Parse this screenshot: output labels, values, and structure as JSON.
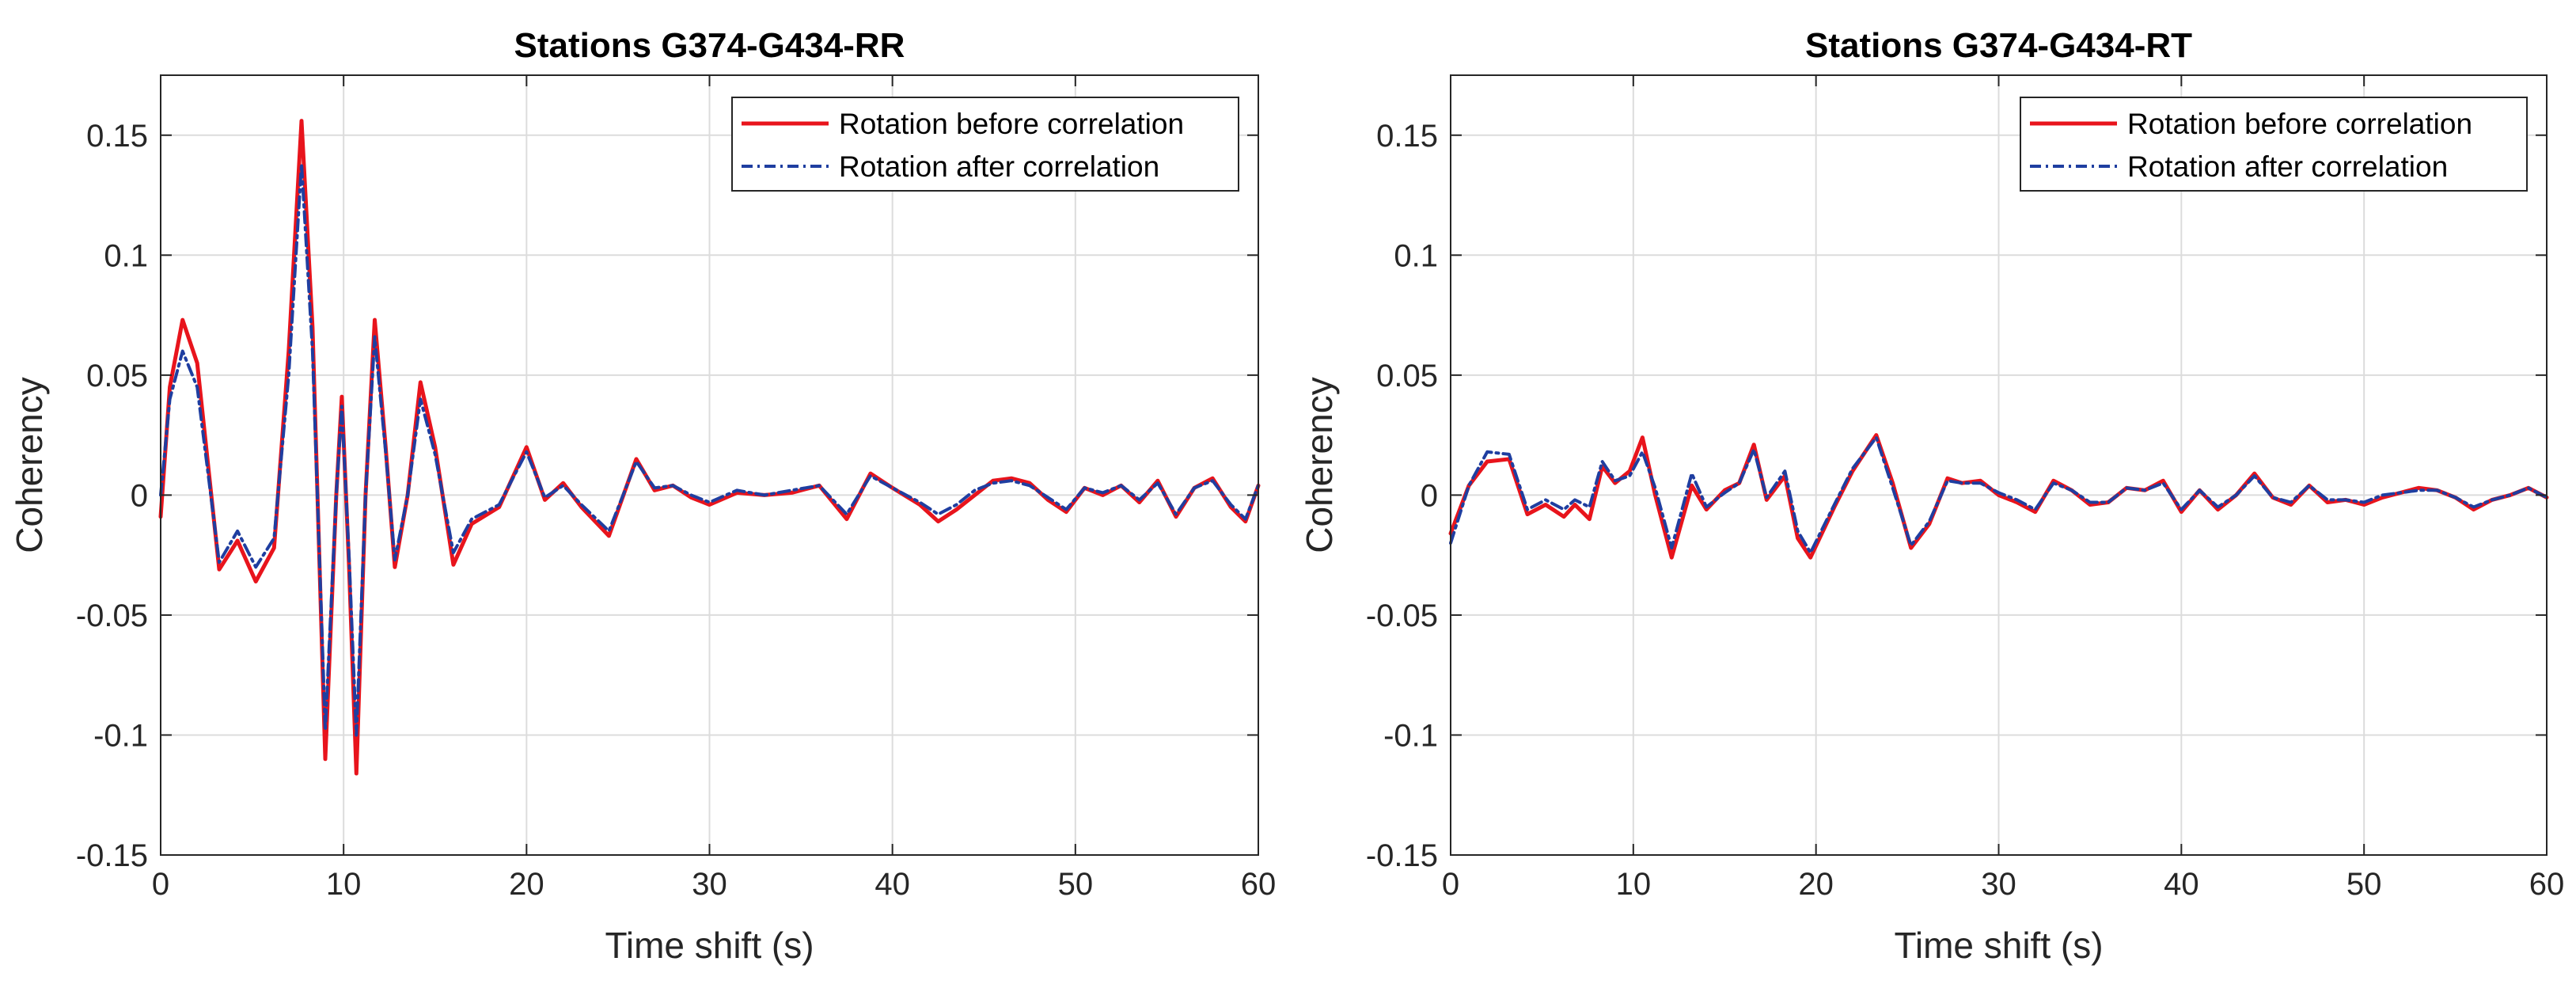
{
  "colors": {
    "before": "#e8141c",
    "after": "#1f3ea0",
    "grid": "#dcdcdc",
    "axis": "#262626"
  },
  "chart_data": [
    {
      "type": "line",
      "title": "Stations G374-G434-RR",
      "xlabel": "Time shift (s)",
      "ylabel": "Coherency",
      "xlim": [
        0,
        60
      ],
      "ylim": [
        -0.15,
        0.175
      ],
      "grid": true,
      "legend_position": "top-right",
      "xticks": [
        0,
        10,
        20,
        30,
        40,
        50,
        60
      ],
      "xtick_labels": [
        "0",
        "10",
        "20",
        "30",
        "40",
        "50",
        "60"
      ],
      "yticks": [
        -0.15,
        -0.1,
        -0.05,
        0,
        0.05,
        0.1,
        0.15
      ],
      "ytick_labels": [
        "-0.15",
        "-0.1",
        "-0.05",
        "0",
        "0.05",
        "0.1",
        "0.15"
      ],
      "series": [
        {
          "name": "Rotation before correlation",
          "style": "solid",
          "color_key": "before",
          "x": [
            0,
            0.5,
            1.2,
            2,
            3.2,
            4.2,
            5.2,
            6.2,
            7.0,
            7.7,
            8.3,
            9.0,
            9.6,
            9.9,
            10.3,
            10.7,
            11.2,
            11.7,
            12.3,
            12.8,
            13.5,
            14.2,
            15.0,
            16.0,
            17.0,
            18.5,
            20.0,
            21.0,
            22.0,
            23.0,
            24.5,
            26.0,
            27.0,
            28.0,
            29.0,
            30.0,
            31.5,
            33.0,
            34.5,
            36.0,
            37.5,
            38.8,
            40.0,
            41.5,
            42.5,
            43.5,
            44.5,
            45.5,
            46.5,
            47.5,
            48.5,
            49.5,
            50.5,
            51.5,
            52.5,
            53.5,
            54.5,
            55.5,
            56.5,
            57.5,
            58.5,
            59.3,
            60
          ],
          "y": [
            -0.009,
            0.045,
            0.073,
            0.055,
            -0.031,
            -0.019,
            -0.036,
            -0.022,
            0.06,
            0.156,
            0.07,
            -0.11,
            0.0,
            0.041,
            -0.03,
            -0.116,
            0.0,
            0.073,
            0.02,
            -0.03,
            0.0,
            0.047,
            0.02,
            -0.029,
            -0.012,
            -0.005,
            0.02,
            -0.002,
            0.005,
            -0.005,
            -0.017,
            0.015,
            0.002,
            0.004,
            -0.001,
            -0.004,
            0.001,
            0.0,
            0.001,
            0.004,
            -0.01,
            0.009,
            0.003,
            -0.004,
            -0.011,
            -0.006,
            0.0,
            0.006,
            0.007,
            0.005,
            -0.002,
            -0.007,
            0.003,
            0.0,
            0.004,
            -0.003,
            0.006,
            -0.009,
            0.003,
            0.007,
            -0.005,
            -0.011,
            0.004
          ]
        },
        {
          "name": "Rotation after correlation",
          "style": "dashdot",
          "color_key": "after",
          "x": [
            0,
            0.5,
            1.2,
            2,
            3.2,
            4.2,
            5.2,
            6.2,
            7.0,
            7.7,
            8.3,
            9.0,
            9.6,
            9.9,
            10.3,
            10.7,
            11.2,
            11.7,
            12.3,
            12.8,
            13.5,
            14.2,
            15.0,
            16.0,
            17.0,
            18.5,
            20.0,
            21.0,
            22.0,
            23.0,
            24.5,
            26.0,
            27.0,
            28.0,
            29.0,
            30.0,
            31.5,
            33.0,
            34.5,
            36.0,
            37.5,
            38.8,
            40.0,
            41.5,
            42.5,
            43.5,
            44.5,
            45.5,
            46.5,
            47.5,
            48.5,
            49.5,
            50.5,
            51.5,
            52.5,
            53.5,
            54.5,
            55.5,
            56.5,
            57.5,
            58.5,
            59.3,
            60
          ],
          "y": [
            0.0,
            0.04,
            0.06,
            0.045,
            -0.028,
            -0.015,
            -0.03,
            -0.018,
            0.05,
            0.138,
            0.06,
            -0.098,
            0.0,
            0.037,
            -0.026,
            -0.1,
            0.0,
            0.066,
            0.018,
            -0.027,
            0.0,
            0.04,
            0.017,
            -0.024,
            -0.01,
            -0.004,
            0.018,
            -0.001,
            0.004,
            -0.004,
            -0.015,
            0.014,
            0.003,
            0.004,
            0.0,
            -0.003,
            0.002,
            0.0,
            0.002,
            0.004,
            -0.008,
            0.008,
            0.003,
            -0.003,
            -0.008,
            -0.004,
            0.002,
            0.005,
            0.006,
            0.004,
            -0.001,
            -0.006,
            0.003,
            0.001,
            0.004,
            -0.002,
            0.005,
            -0.008,
            0.003,
            0.006,
            -0.004,
            -0.01,
            0.004
          ]
        }
      ]
    },
    {
      "type": "line",
      "title": "Stations G374-G434-RT",
      "xlabel": "Time shift (s)",
      "ylabel": "Coherency",
      "xlim": [
        0,
        60
      ],
      "ylim": [
        -0.15,
        0.175
      ],
      "grid": true,
      "legend_position": "top-right",
      "xticks": [
        0,
        10,
        20,
        30,
        40,
        50,
        60
      ],
      "xtick_labels": [
        "0",
        "10",
        "20",
        "30",
        "40",
        "50",
        "60"
      ],
      "yticks": [
        -0.15,
        -0.1,
        -0.05,
        0,
        0.05,
        0.1,
        0.15
      ],
      "ytick_labels": [
        "-0.15",
        "-0.1",
        "-0.05",
        "0",
        "0.05",
        "0.1",
        "0.15"
      ],
      "series": [
        {
          "name": "Rotation before correlation",
          "style": "solid",
          "color_key": "before",
          "x": [
            0,
            1.0,
            2.0,
            3.2,
            4.2,
            5.2,
            6.2,
            6.8,
            7.6,
            8.3,
            9.0,
            9.8,
            10.5,
            11.2,
            12.1,
            13.2,
            14.0,
            15.0,
            15.8,
            16.6,
            17.3,
            18.3,
            19.0,
            19.7,
            21.0,
            22.0,
            23.3,
            24.2,
            25.2,
            26.2,
            27.2,
            28.0,
            29.0,
            30.0,
            31.0,
            32.0,
            33.0,
            34.0,
            35.0,
            36.0,
            37.0,
            38.0,
            39.0,
            40.0,
            41.0,
            42.0,
            43.0,
            44.0,
            45.0,
            46.0,
            47.0,
            48.0,
            49.0,
            50.0,
            51.0,
            52.0,
            53.0,
            54.0,
            55.0,
            56.0,
            57.0,
            58.0,
            59.0,
            60.0
          ],
          "y": [
            -0.016,
            0.004,
            0.014,
            0.015,
            -0.008,
            -0.004,
            -0.009,
            -0.004,
            -0.01,
            0.012,
            0.005,
            0.01,
            0.024,
            0.0,
            -0.026,
            0.004,
            -0.006,
            0.002,
            0.005,
            0.021,
            -0.002,
            0.008,
            -0.018,
            -0.026,
            -0.005,
            0.01,
            0.025,
            0.005,
            -0.022,
            -0.012,
            0.007,
            0.005,
            0.006,
            0.0,
            -0.003,
            -0.007,
            0.006,
            0.002,
            -0.004,
            -0.003,
            0.003,
            0.002,
            0.006,
            -0.007,
            0.002,
            -0.006,
            0.0,
            0.009,
            -0.001,
            -0.004,
            0.004,
            -0.003,
            -0.002,
            -0.004,
            -0.001,
            0.001,
            0.003,
            0.002,
            -0.001,
            -0.006,
            -0.002,
            0.0,
            0.003,
            -0.001
          ]
        },
        {
          "name": "Rotation after correlation",
          "style": "dashdot",
          "color_key": "after",
          "x": [
            0,
            1.0,
            2.0,
            3.2,
            4.2,
            5.2,
            6.2,
            6.8,
            7.6,
            8.3,
            9.0,
            9.8,
            10.5,
            11.2,
            12.1,
            13.2,
            14.0,
            15.0,
            15.8,
            16.6,
            17.3,
            18.3,
            19.0,
            19.7,
            21.0,
            22.0,
            23.3,
            24.2,
            25.2,
            26.2,
            27.2,
            28.0,
            29.0,
            30.0,
            31.0,
            32.0,
            33.0,
            34.0,
            35.0,
            36.0,
            37.0,
            38.0,
            39.0,
            40.0,
            41.0,
            42.0,
            43.0,
            44.0,
            45.0,
            46.0,
            47.0,
            48.0,
            49.0,
            50.0,
            51.0,
            52.0,
            53.0,
            54.0,
            55.0,
            56.0,
            57.0,
            58.0,
            59.0,
            60.0
          ],
          "y": [
            -0.02,
            0.004,
            0.018,
            0.017,
            -0.006,
            -0.002,
            -0.006,
            -0.002,
            -0.005,
            0.014,
            0.006,
            0.008,
            0.018,
            0.003,
            -0.022,
            0.009,
            -0.005,
            0.001,
            0.005,
            0.019,
            -0.001,
            0.01,
            -0.015,
            -0.024,
            -0.004,
            0.011,
            0.024,
            0.003,
            -0.021,
            -0.011,
            0.006,
            0.005,
            0.005,
            0.001,
            -0.002,
            -0.006,
            0.005,
            0.002,
            -0.003,
            -0.003,
            0.003,
            0.002,
            0.005,
            -0.006,
            0.002,
            -0.005,
            0.0,
            0.008,
            -0.001,
            -0.003,
            0.004,
            -0.002,
            -0.002,
            -0.003,
            0.0,
            0.001,
            0.002,
            0.002,
            -0.001,
            -0.005,
            -0.002,
            0.0,
            0.003,
            -0.001
          ]
        }
      ]
    }
  ]
}
